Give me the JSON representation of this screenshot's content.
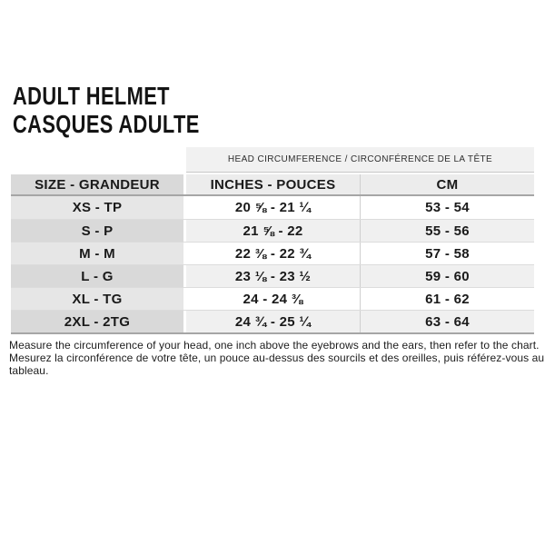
{
  "header": {
    "title_en": "ADULT HELMET",
    "title_fr": "CASQUES ADULTE"
  },
  "size_chart": {
    "span_header": "HEAD CIRCUMFERENCE / CIRCONFÉRENCE DE LA TÊTE",
    "columns": {
      "size": "SIZE - GRANDEUR",
      "inches": "INCHES - POUCES",
      "cm": "CM"
    },
    "rows": [
      {
        "size": "XS - TP",
        "inches": "20 ⅝ - 21 ¼",
        "cm": "53 - 54"
      },
      {
        "size": "S - P",
        "inches": "21 ⅝ - 22",
        "cm": "55 - 56"
      },
      {
        "size": "M - M",
        "inches": "22 ⅜ - 22 ¾",
        "cm": "57 - 58"
      },
      {
        "size": "L - G",
        "inches": "23 ⅛ - 23 ½",
        "cm": "59 - 60"
      },
      {
        "size": "XL - TG",
        "inches": "24 - 24 ⅜",
        "cm": "61 - 62"
      },
      {
        "size": "2XL - 2TG",
        "inches": "24 ¾ - 25 ¼",
        "cm": "63 - 64"
      }
    ]
  },
  "footer": {
    "instruction_en": "Measure the circumference of your head, one inch above the eyebrows and the ears, then refer to the chart.",
    "instruction_fr": "Mesurez la circonférence de votre tête, un pouce au-dessus des sourcils et des oreilles, puis référez-vous au tableau."
  },
  "colors": {
    "band_bg": "#f1f1f1",
    "header_size_bg": "#d9d9d9",
    "header_value_bg": "#ececec",
    "row_size_bg_light": "#e6e6e6",
    "row_size_bg_dark": "#d9d9d9",
    "row_value_bg_light": "#ffffff",
    "row_value_bg_dark": "#f0f0f0",
    "strong_border": "#a6a6a6",
    "text": "#1a1a1a"
  }
}
